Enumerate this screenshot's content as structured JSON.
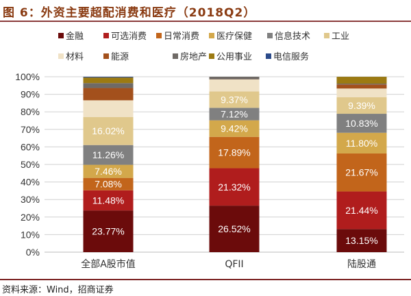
{
  "title": "图 6：外资主要超配消费和医疗（2018Q2）",
  "source": "资料来源：Wind，招商证券",
  "chart_data": {
    "type": "bar",
    "stacked": true,
    "title": "图 6：外资主要超配消费和医疗（2018Q2）",
    "categories": [
      "全部A股市值",
      "QFII",
      "陆股通"
    ],
    "ylim": [
      0,
      100
    ],
    "yticks": [
      "0%",
      "10%",
      "20%",
      "30%",
      "40%",
      "50%",
      "60%",
      "70%",
      "80%",
      "90%",
      "100%"
    ],
    "legend_position": "top",
    "grid": true,
    "series": [
      {
        "name": "金融",
        "color": "#6b0b0b",
        "values": [
          23.77,
          26.52,
          13.15
        ],
        "labels": [
          "23.77%",
          "26.52%",
          "13.15%"
        ]
      },
      {
        "name": "可选消费",
        "color": "#b01d1d",
        "values": [
          11.48,
          21.32,
          21.44
        ],
        "labels": [
          "11.48%",
          "21.32%",
          "21.44%"
        ]
      },
      {
        "name": "日常消费",
        "color": "#c2651b",
        "values": [
          7.08,
          17.89,
          21.67
        ],
        "labels": [
          "7.08%",
          "17.89%",
          "21.67%"
        ]
      },
      {
        "name": "医疗保健",
        "color": "#d3a84b",
        "values": [
          7.46,
          9.42,
          11.8
        ],
        "labels": [
          "7.46%",
          "9.42%",
          "11.80%"
        ]
      },
      {
        "name": "信息技术",
        "color": "#808080",
        "values": [
          11.26,
          7.12,
          10.83
        ],
        "labels": [
          "11.26%",
          "7.12%",
          "10.83%"
        ]
      },
      {
        "name": "工业",
        "color": "#e0c88c",
        "values": [
          16.02,
          9.37,
          9.39
        ],
        "labels": [
          "16.02%",
          "9.37%",
          "9.39%"
        ]
      },
      {
        "name": "材料",
        "color": "#f0e2c6",
        "values": [
          9.5,
          6.8,
          5.0
        ]
      },
      {
        "name": "能源",
        "color": "#a3501c",
        "values": [
          7.0,
          0.1,
          2.3
        ]
      },
      {
        "name": "房地产",
        "color": "#6f6a66",
        "values": [
          2.8,
          1.46,
          0.5
        ]
      },
      {
        "name": "公用事业",
        "color": "#9c7a12",
        "values": [
          3.2,
          0,
          3.9
        ]
      },
      {
        "name": "电信服务",
        "color": "#2b4a8a",
        "values": [
          0.43,
          0,
          0.02
        ]
      }
    ]
  }
}
